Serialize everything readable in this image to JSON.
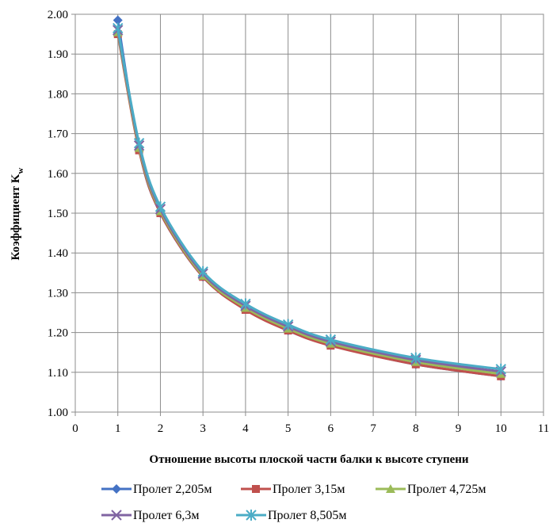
{
  "chart_data": {
    "type": "line",
    "title": "",
    "xlabel": "Отношение высоты плоской части балки к высоте ступени",
    "ylabel_main": "Коэффициент K",
    "ylabel_sub": "w",
    "xlim": [
      0,
      11
    ],
    "ylim": [
      1.0,
      2.0
    ],
    "x_ticks": [
      "0",
      "1",
      "2",
      "3",
      "4",
      "5",
      "6",
      "7",
      "8",
      "9",
      "10",
      "11"
    ],
    "y_ticks": [
      "1.00",
      "1.10",
      "1.20",
      "1.30",
      "1.40",
      "1.50",
      "1.60",
      "1.70",
      "1.80",
      "1.90",
      "2.00"
    ],
    "grid": true,
    "legend_position": "bottom",
    "x": [
      1,
      1.5,
      2,
      3,
      4,
      5,
      6,
      8,
      10
    ],
    "series": [
      {
        "name": "Пролет 2,205м",
        "color": "#4472C4",
        "marker": "diamond",
        "values": [
          1.985,
          1.66,
          1.5,
          1.34,
          1.26,
          1.205,
          1.168,
          1.12,
          1.09
        ]
      },
      {
        "name": "Пролет 3,15м",
        "color": "#C0504D",
        "marker": "square",
        "values": [
          1.95,
          1.658,
          1.5,
          1.34,
          1.257,
          1.205,
          1.167,
          1.12,
          1.09
        ]
      },
      {
        "name": "Пролет 4,725м",
        "color": "#9BBB59",
        "marker": "triangle",
        "values": [
          1.955,
          1.664,
          1.505,
          1.343,
          1.262,
          1.21,
          1.172,
          1.126,
          1.096
        ]
      },
      {
        "name": "Пролет 6,3м",
        "color": "#8064A2",
        "marker": "x",
        "values": [
          1.96,
          1.67,
          1.51,
          1.348,
          1.267,
          1.215,
          1.177,
          1.131,
          1.102
        ]
      },
      {
        "name": "Пролет 8,505м",
        "color": "#4BACC6",
        "marker": "star",
        "values": [
          1.965,
          1.676,
          1.516,
          1.353,
          1.272,
          1.22,
          1.182,
          1.136,
          1.108
        ]
      }
    ]
  }
}
